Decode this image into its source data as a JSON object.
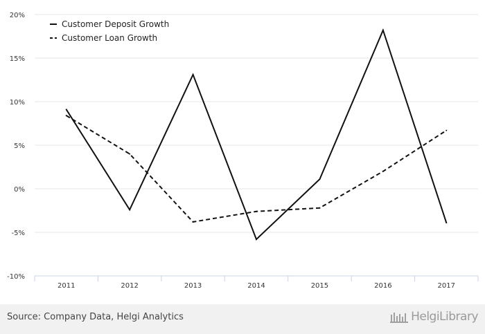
{
  "chart_data": {
    "type": "line",
    "title": "",
    "xlabel": "",
    "ylabel": "",
    "categories": [
      "2011",
      "2012",
      "2013",
      "2014",
      "2015",
      "2016",
      "2017"
    ],
    "ylim": [
      -10,
      20
    ],
    "yticks": [
      20,
      15,
      10,
      5,
      0,
      -5,
      -10
    ],
    "ytick_labels": [
      "20%",
      "15%",
      "10%",
      "5%",
      "0%",
      "-5%",
      "-10%"
    ],
    "grid": true,
    "legend_position": "top-left",
    "series": [
      {
        "name": "Customer Deposit Growth",
        "style": "solid",
        "color": "#111111",
        "values": [
          9.1,
          -2.4,
          13.1,
          -5.8,
          1.1,
          18.2,
          -3.9
        ]
      },
      {
        "name": "Customer Loan Growth",
        "style": "dashed",
        "color": "#111111",
        "values": [
          8.4,
          4.0,
          -3.8,
          -2.6,
          -2.2,
          2.0,
          6.7
        ]
      }
    ]
  },
  "footer": {
    "source": "Source: Company Data, Helgi Analytics",
    "logo_text": "HelgiLibrary"
  }
}
